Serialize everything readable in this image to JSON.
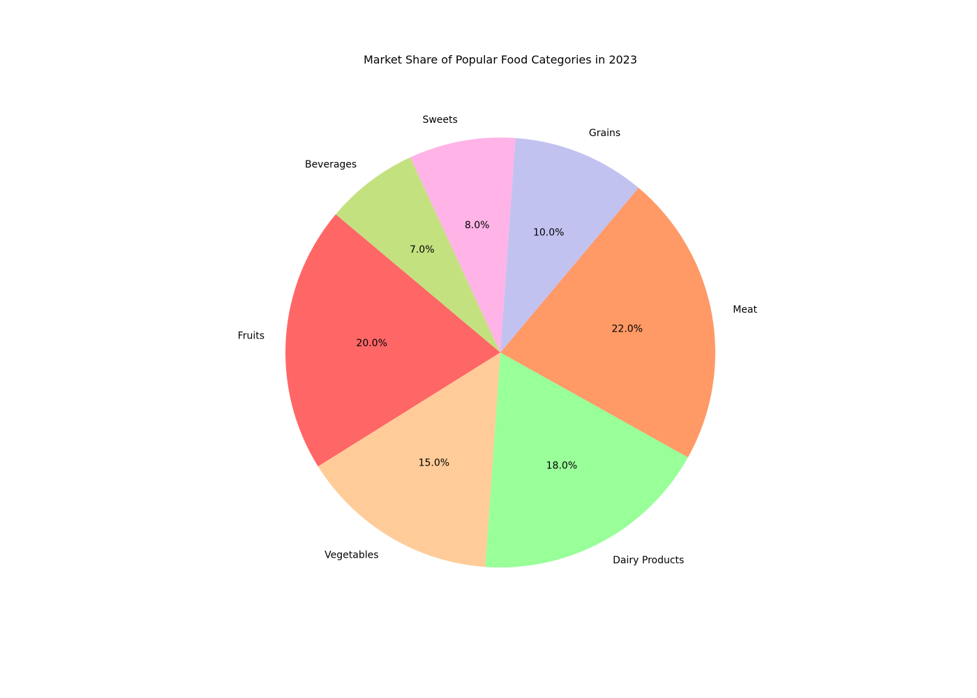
{
  "chart_data": {
    "type": "pie",
    "title": "Market Share of Popular Food Categories in 2023",
    "categories": [
      "Fruits",
      "Vegetables",
      "Dairy Products",
      "Meat",
      "Grains",
      "Sweets",
      "Beverages"
    ],
    "values": [
      20,
      15,
      18,
      22,
      10,
      8,
      7
    ],
    "value_labels": [
      "20.0%",
      "15.0%",
      "18.0%",
      "22.0%",
      "10.0%",
      "8.0%",
      "7.0%"
    ],
    "colors": [
      "#ff6666",
      "#ffcc99",
      "#99ff99",
      "#ff9966",
      "#c2c2f0",
      "#ffb3e6",
      "#c4e17f"
    ],
    "start_angle_deg": 140,
    "direction": "counterclockwise",
    "legend": "none"
  }
}
